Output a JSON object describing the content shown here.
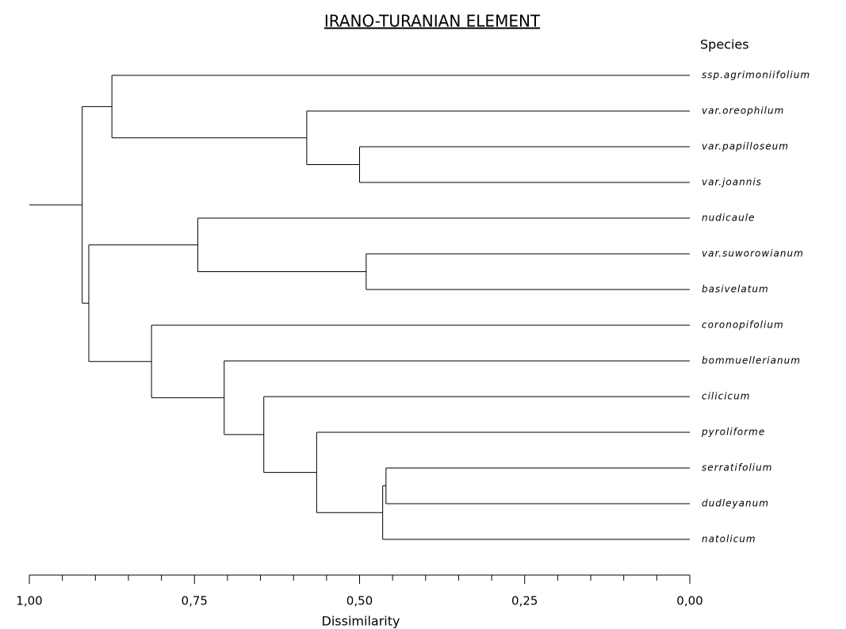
{
  "chart_data": {
    "type": "dendrogram",
    "title": "IRANO-TURANIAN ELEMENT",
    "leaf_axis_label": "Species",
    "x_label": "Dissimilarity",
    "leaves": [
      "ssp.agrimoniifolium",
      "var.oreophilum",
      "var.papilloseum",
      "var.joannis",
      "nudicaule",
      "var.suworowianum",
      "basivelatum",
      "coronopifolium",
      "bommuellerianum",
      "cilicicum",
      "pyroliforme",
      "serratifolium",
      "dudleyanum",
      "natolicum"
    ],
    "merges": [
      {
        "children": [
          {
            "leaf": 2
          },
          {
            "leaf": 3
          }
        ],
        "height": 0.5
      },
      {
        "children": [
          {
            "leaf": 1
          },
          {
            "merge": 0
          }
        ],
        "height": 0.58
      },
      {
        "children": [
          {
            "leaf": 0
          },
          {
            "merge": 1
          }
        ],
        "height": 0.875
      },
      {
        "children": [
          {
            "leaf": 5
          },
          {
            "leaf": 6
          }
        ],
        "height": 0.49
      },
      {
        "children": [
          {
            "leaf": 4
          },
          {
            "merge": 3
          }
        ],
        "height": 0.745
      },
      {
        "children": [
          {
            "leaf": 11
          },
          {
            "leaf": 12
          }
        ],
        "height": 0.46
      },
      {
        "children": [
          {
            "merge": 5
          },
          {
            "leaf": 13
          }
        ],
        "height": 0.465
      },
      {
        "children": [
          {
            "leaf": 10
          },
          {
            "merge": 6
          }
        ],
        "height": 0.565
      },
      {
        "children": [
          {
            "leaf": 9
          },
          {
            "merge": 7
          }
        ],
        "height": 0.645
      },
      {
        "children": [
          {
            "leaf": 8
          },
          {
            "merge": 8
          }
        ],
        "height": 0.705
      },
      {
        "children": [
          {
            "leaf": 7
          },
          {
            "merge": 9
          }
        ],
        "height": 0.815
      },
      {
        "children": [
          {
            "merge": 4
          },
          {
            "merge": 10
          }
        ],
        "height": 0.91
      },
      {
        "children": [
          {
            "merge": 2
          },
          {
            "merge": 11
          }
        ],
        "height": 0.92
      }
    ],
    "xlim": [
      1,
      0
    ],
    "xticks": [
      {
        "value": 1,
        "label": "1,00"
      },
      {
        "value": 0.75,
        "label": "0,75"
      },
      {
        "value": 0.5,
        "label": "0,50"
      },
      {
        "value": 0.25,
        "label": "0,25"
      },
      {
        "value": 0,
        "label": "0,00"
      }
    ],
    "minor_xticks": [
      0.95,
      0.9,
      0.85,
      0.8,
      0.7,
      0.65,
      0.6,
      0.55,
      0.45,
      0.4,
      0.35,
      0.3,
      0.2,
      0.15,
      0.1,
      0.05
    ],
    "color": "#000000"
  }
}
